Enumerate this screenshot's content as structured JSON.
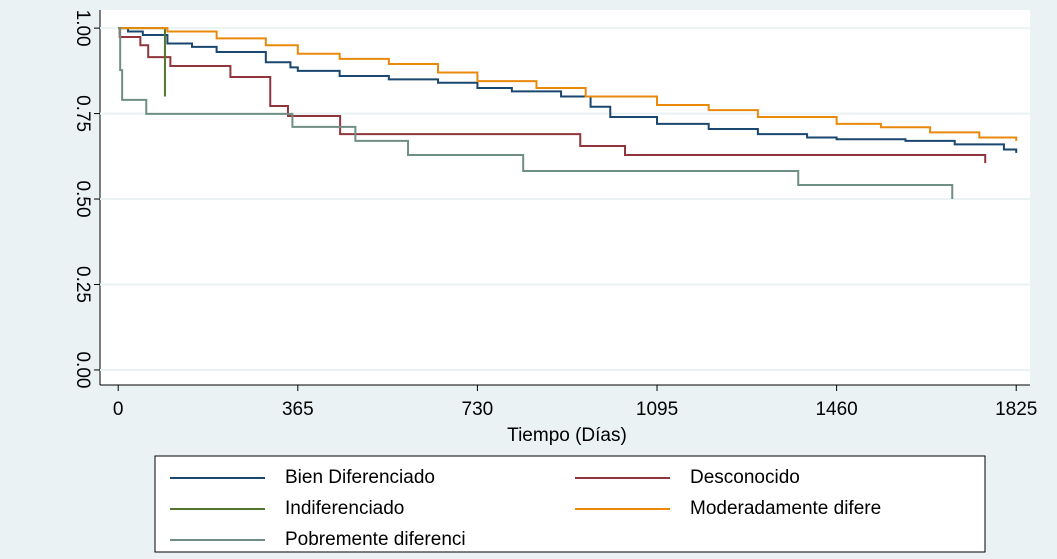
{
  "chart_data": {
    "type": "step",
    "x_label": "Tiempo (Días)",
    "xlim": [
      -37,
      1853
    ],
    "ylim": [
      -0.044,
      1.053
    ],
    "xticks": [
      0,
      365,
      730,
      1095,
      1460,
      1825
    ],
    "yticks": [
      {
        "value": 0,
        "label": "0.00"
      },
      {
        "value": 0.25,
        "label": "0.25"
      },
      {
        "value": 0.5,
        "label": "0.50"
      },
      {
        "value": 0.75,
        "label": "0.75"
      },
      {
        "value": 1,
        "label": "1.00"
      }
    ],
    "grid": true,
    "series": [
      {
        "name": "Bien Diferenciado",
        "color": "#1a476f",
        "x": [
          0,
          20,
          50,
          100,
          150,
          200,
          300,
          350,
          365,
          450,
          550,
          650,
          730,
          800,
          900,
          960,
          1000,
          1095,
          1200,
          1300,
          1400,
          1460,
          1600,
          1700,
          1800,
          1825
        ],
        "values": [
          1,
          0.99,
          0.98,
          0.955,
          0.945,
          0.93,
          0.9,
          0.885,
          0.875,
          0.86,
          0.85,
          0.84,
          0.825,
          0.815,
          0.8,
          0.77,
          0.74,
          0.72,
          0.705,
          0.69,
          0.68,
          0.675,
          0.67,
          0.66,
          0.645,
          0.635
        ]
      },
      {
        "name": "Desconocido",
        "color": "#90353b",
        "x": [
          0,
          3,
          45,
          61,
          106,
          228,
          309,
          345,
          451,
          939,
          1030,
          1762
        ],
        "values": [
          1,
          0.974,
          0.95,
          0.915,
          0.889,
          0.857,
          0.772,
          0.743,
          0.69,
          0.655,
          0.629,
          0.605
        ]
      },
      {
        "name": "Indiferenciado",
        "color": "#55752f",
        "x": [
          0,
          95
        ],
        "values": [
          1,
          0.8
        ]
      },
      {
        "name": "Moderadamente difere",
        "color": "#e8890c",
        "x": [
          0,
          100,
          200,
          300,
          365,
          450,
          550,
          650,
          730,
          850,
          950,
          1095,
          1200,
          1300,
          1460,
          1550,
          1650,
          1750,
          1825
        ],
        "values": [
          1,
          0.99,
          0.97,
          0.95,
          0.925,
          0.91,
          0.895,
          0.87,
          0.845,
          0.825,
          0.8,
          0.775,
          0.76,
          0.74,
          0.72,
          0.71,
          0.695,
          0.68,
          0.67
        ]
      },
      {
        "name": "Pobremente diferenci",
        "color": "#6f8f86",
        "x": [
          0,
          4,
          8,
          57,
          354,
          482,
          589,
          823,
          1382,
          1695
        ],
        "values": [
          1,
          0.877,
          0.79,
          0.749,
          0.711,
          0.67,
          0.629,
          0.582,
          0.541,
          0.5
        ]
      }
    ]
  }
}
